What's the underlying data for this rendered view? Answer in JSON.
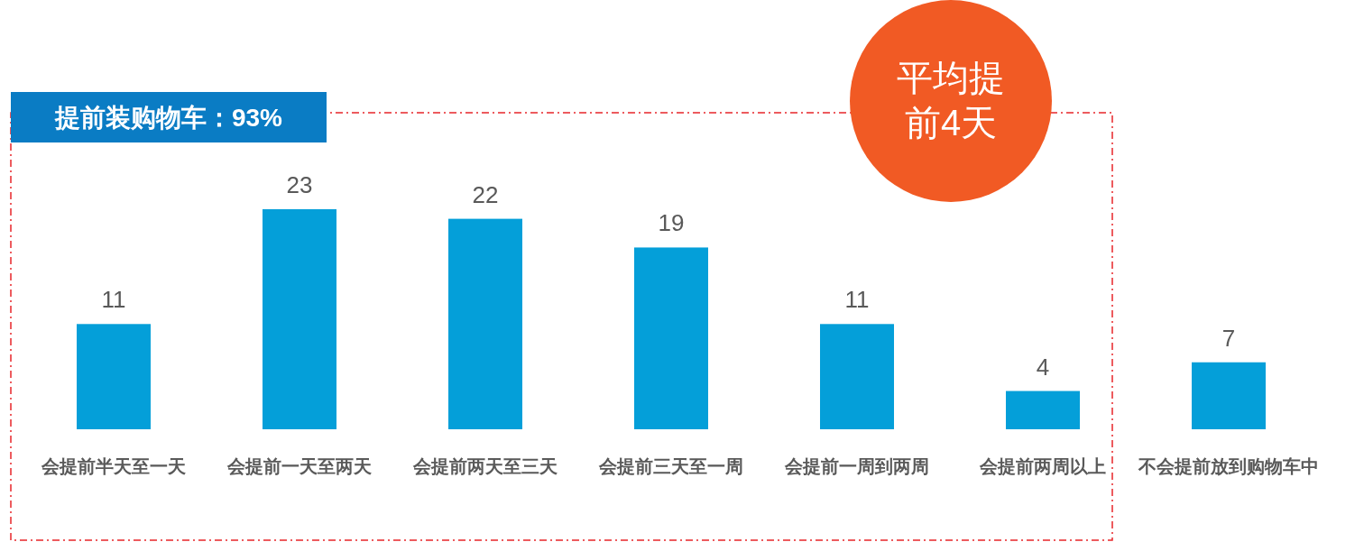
{
  "chart_data": {
    "type": "bar",
    "categories": [
      "会提前半天至一天",
      "会提前一天至两天",
      "会提前两天至三天",
      "会提前三天至一周",
      "会提前一周到两周",
      "会提前两周以上",
      "不会提前放到购物车中"
    ],
    "values": [
      11,
      23,
      22,
      19,
      11,
      4,
      7
    ],
    "color": "#049fd9",
    "data_labels": true,
    "annotations": [
      "提前装购物车：93%",
      "平均提前4天"
    ]
  }
}
